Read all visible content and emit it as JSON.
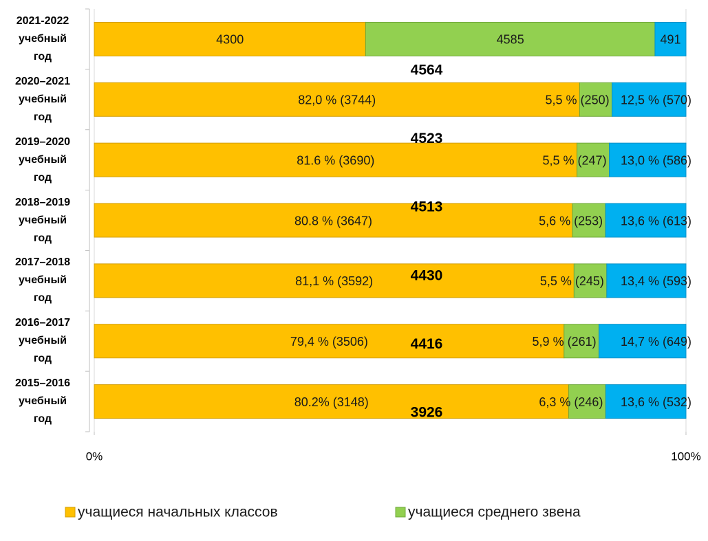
{
  "chart_data": {
    "type": "stacked_bar_100_horizontal",
    "categories": [
      "2021-2022 учебный год",
      "2020–2021 учебный год",
      "2019–2020 учебный год",
      "2018–2019 учебный год",
      "2017–2018 учебный год",
      "2016–2017 учебный год",
      "2015–2016 учебный год"
    ],
    "series": [
      {
        "name": "учащиеся начальных классов",
        "color": "#ffc000",
        "values": [
          4300,
          3744,
          3690,
          3647,
          3592,
          3506,
          3148
        ],
        "value_labels": [
          "4300",
          "82,0 % (3744)",
          "81.6 % (3690)",
          "80.8 % (3647)",
          "81,1 % (3592)",
          "79,4 % (3506)",
          "80.2% (3148)"
        ]
      },
      {
        "name": "учащиеся среднего звена",
        "color": "#92d050",
        "values": [
          4585,
          250,
          247,
          253,
          245,
          261,
          246
        ],
        "value_labels": [
          "4585",
          "5,5 % (250)",
          "5,5 % (247)",
          "5,6 % (253)",
          "5,5 % (245)",
          "5,9 % (261)",
          "6,3 % (246)"
        ]
      },
      {
        "color": "#00b0f0",
        "values": [
          491,
          570,
          586,
          613,
          593,
          649,
          532
        ],
        "value_labels": [
          "491",
          "12,5 % (570)",
          "13,0 % (586)",
          "13,6 % (613)",
          "13,4 % (593)",
          "14,7 % (649)",
          "13,6 % (532)"
        ]
      }
    ],
    "totals": [
      null,
      4564,
      4523,
      4513,
      4430,
      4416,
      3926
    ],
    "xlim": [
      0,
      100
    ],
    "xticks": [
      {
        "value": 0,
        "label": "0%"
      },
      {
        "value": 100,
        "label": "100%"
      }
    ],
    "grid": true,
    "legend": "bottom"
  }
}
